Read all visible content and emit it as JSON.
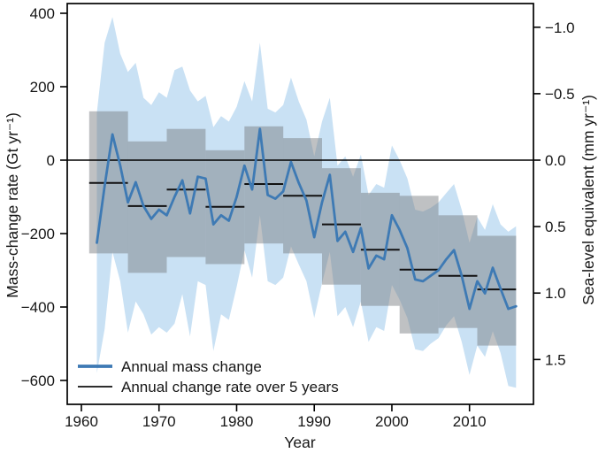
{
  "figure": {
    "background": "#ffffff",
    "legend": [
      {
        "label": "Annual mass change"
      },
      {
        "label": "Annual change rate over 5 years"
      }
    ]
  },
  "chart_data": {
    "type": "line",
    "title": "",
    "xlabel": "Year",
    "ylabel_left": "Mass-change rate (Gt yr⁻¹)",
    "ylabel_right": "Sea-level equivalent (mm yr⁻¹)",
    "xlim": [
      1958.2,
      2018.3
    ],
    "ylim_left": [
      -665,
      427
    ],
    "gt_per_mm_sle": 362,
    "grid": false,
    "legend_position": "lower left",
    "x_ticks": [
      1960,
      1970,
      1980,
      1990,
      2000,
      2010
    ],
    "y_ticks_left": [
      400,
      200,
      0,
      -200,
      -400,
      -600
    ],
    "y_ticks_right": [
      -1.0,
      -0.5,
      0.0,
      0.5,
      1.0,
      1.5
    ],
    "colors": {
      "annual_line": "#3e7ab4",
      "uncertainty_band": "#c9e1f4",
      "pentad_box": "rgba(118,124,128,0.47)",
      "pentad_line": "#111111",
      "axis": "#000000"
    },
    "years": [
      1962,
      1963,
      1964,
      1965,
      1966,
      1967,
      1968,
      1969,
      1970,
      1971,
      1972,
      1973,
      1974,
      1975,
      1976,
      1977,
      1978,
      1979,
      1980,
      1981,
      1982,
      1983,
      1984,
      1985,
      1986,
      1987,
      1988,
      1989,
      1990,
      1991,
      1992,
      1993,
      1994,
      1995,
      1996,
      1997,
      1998,
      1999,
      2000,
      2001,
      2002,
      2003,
      2004,
      2005,
      2006,
      2007,
      2008,
      2009,
      2010,
      2011,
      2012,
      2013,
      2014,
      2015,
      2016
    ],
    "annual_mass_change_gt": [
      -225,
      -70,
      70,
      -15,
      -115,
      -60,
      -125,
      -160,
      -135,
      -150,
      -100,
      -55,
      -145,
      -45,
      -50,
      -175,
      -150,
      -165,
      -100,
      -15,
      -80,
      85,
      -95,
      -105,
      -85,
      -5,
      -62,
      -110,
      -210,
      -115,
      -40,
      -220,
      -195,
      -250,
      -185,
      -295,
      -260,
      -270,
      -150,
      -190,
      -240,
      -325,
      -330,
      -315,
      -300,
      -270,
      -245,
      -315,
      -405,
      -330,
      -363,
      -293,
      -350,
      -405,
      -398
    ],
    "annual_upper_gt": [
      130,
      320,
      390,
      290,
      240,
      265,
      170,
      150,
      185,
      170,
      245,
      255,
      190,
      160,
      175,
      90,
      120,
      105,
      145,
      215,
      160,
      320,
      140,
      130,
      150,
      225,
      160,
      110,
      10,
      105,
      170,
      -15,
      10,
      -45,
      15,
      -95,
      -65,
      -75,
      40,
      0,
      -50,
      -135,
      -140,
      -130,
      -115,
      -90,
      -65,
      -135,
      -225,
      -155,
      -190,
      -120,
      -175,
      -195,
      -180
    ],
    "annual_lower_gt": [
      -580,
      -460,
      -250,
      -330,
      -470,
      -385,
      -420,
      -475,
      -455,
      -470,
      -445,
      -365,
      -480,
      -330,
      -340,
      -520,
      -420,
      -435,
      -345,
      -245,
      -320,
      -150,
      -330,
      -340,
      -320,
      -235,
      -284,
      -330,
      -430,
      -335,
      -250,
      -425,
      -400,
      -455,
      -385,
      -495,
      -455,
      -465,
      -340,
      -380,
      -430,
      -515,
      -520,
      -500,
      -485,
      -450,
      -425,
      -495,
      -585,
      -505,
      -536,
      -466,
      -525,
      -615,
      -620
    ],
    "pentads": [
      {
        "start": 1961,
        "end": 1966,
        "mean": -62,
        "upper": 133,
        "lower": -254
      },
      {
        "start": 1966,
        "end": 1971,
        "mean": -125,
        "upper": 51,
        "lower": -307
      },
      {
        "start": 1971,
        "end": 1976,
        "mean": -80,
        "upper": 85,
        "lower": -264
      },
      {
        "start": 1976,
        "end": 1981,
        "mean": -127,
        "upper": 27,
        "lower": -283
      },
      {
        "start": 1981,
        "end": 1986,
        "mean": -65,
        "upper": 92,
        "lower": -227
      },
      {
        "start": 1986,
        "end": 1991,
        "mean": -97,
        "upper": 60,
        "lower": -254
      },
      {
        "start": 1991,
        "end": 1996,
        "mean": -175,
        "upper": -22,
        "lower": -339
      },
      {
        "start": 1996,
        "end": 2001,
        "mean": -244,
        "upper": -89,
        "lower": -397
      },
      {
        "start": 2001,
        "end": 2006,
        "mean": -298,
        "upper": -97,
        "lower": -472
      },
      {
        "start": 2006,
        "end": 2011,
        "mean": -315,
        "upper": -150,
        "lower": -457
      },
      {
        "start": 2011,
        "end": 2016,
        "mean": -352,
        "upper": -206,
        "lower": -505
      }
    ]
  }
}
